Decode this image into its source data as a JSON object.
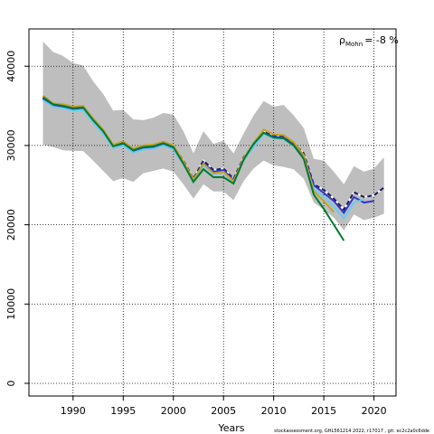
{
  "chart_data": {
    "type": "line",
    "x_label": "Years",
    "annotation": {
      "symbol": "ρ",
      "subscript": "Mohn",
      "text": "= -8 %"
    },
    "footer": "stockassessment.org, GHL561214 2022, r17017 , git: ec2c2a0c6dde",
    "x": [
      1987,
      1988,
      1989,
      1990,
      1991,
      1992,
      1993,
      1994,
      1995,
      1996,
      1997,
      1998,
      1999,
      2000,
      2001,
      2002,
      2003,
      2004,
      2005,
      2006,
      2007,
      2008,
      2009,
      2010,
      2011,
      2012,
      2013,
      2014,
      2015,
      2016,
      2017,
      2018,
      2019,
      2020,
      2021
    ],
    "xlim": [
      1985.6,
      2022.2
    ],
    "xticks": [
      1990,
      1995,
      2000,
      2005,
      2010,
      2015,
      2020
    ],
    "ylim": [
      -1600,
      44700
    ],
    "yticks": [
      0,
      10000,
      20000,
      30000,
      40000
    ],
    "grid": true,
    "band": {
      "color": "#bebebe",
      "upper": [
        43100,
        41800,
        41300,
        40400,
        40100,
        38100,
        36500,
        34400,
        34500,
        33300,
        33200,
        33500,
        34100,
        33900,
        31800,
        29000,
        31800,
        30200,
        30600,
        29000,
        31500,
        33800,
        35600,
        34900,
        35100,
        33800,
        32200,
        28300,
        28100,
        26700,
        25100,
        27400,
        26700,
        27100,
        28500
      ],
      "lower": [
        30100,
        29800,
        29400,
        29300,
        29300,
        28100,
        26800,
        25500,
        25900,
        25400,
        26500,
        26800,
        27100,
        26700,
        25100,
        23300,
        25100,
        24200,
        24200,
        23100,
        25500,
        27100,
        28100,
        27500,
        27300,
        27000,
        25800,
        22800,
        21900,
        20900,
        19300,
        21300,
        20600,
        20900,
        21400
      ]
    },
    "series": [
      {
        "color": "#1a1a5e",
        "dashed": true,
        "values": [
          36000,
          35100,
          35000,
          34700,
          34800,
          33200,
          31800,
          30000,
          30300,
          29400,
          29800,
          29900,
          30300,
          29900,
          28100,
          25800,
          28100,
          26900,
          27100,
          25800,
          28500,
          30100,
          31700,
          31200,
          31100,
          30300,
          29000,
          25100,
          24400,
          23300,
          21900,
          24100,
          23500,
          23700,
          24700
        ]
      },
      {
        "color": "#3333cc",
        "dashed": false,
        "values": [
          35900,
          35000,
          34900,
          34600,
          34700,
          33100,
          31700,
          29900,
          30200,
          29300,
          29700,
          29800,
          30200,
          29700,
          27800,
          25600,
          27800,
          26700,
          26900,
          25600,
          28300,
          30000,
          31600,
          31100,
          31000,
          30100,
          28700,
          25000,
          24000,
          23000,
          21500,
          23500,
          22800,
          23000,
          null
        ]
      },
      {
        "color": "#66ccee",
        "dashed": false,
        "values": [
          35700,
          34900,
          34700,
          34400,
          34500,
          32900,
          31500,
          29700,
          30000,
          29100,
          29500,
          29600,
          30000,
          29500,
          27600,
          25400,
          27500,
          26400,
          26600,
          25400,
          28100,
          29800,
          31400,
          30900,
          30800,
          29900,
          28400,
          24500,
          23500,
          22300,
          20800,
          22800,
          23200,
          null,
          null
        ]
      },
      {
        "color": "#c8a020",
        "dashed": false,
        "values": [
          36300,
          35300,
          35200,
          34900,
          35000,
          33400,
          32000,
          30100,
          30500,
          29600,
          30000,
          30100,
          30500,
          30000,
          28000,
          25700,
          27700,
          26500,
          26700,
          25500,
          28400,
          30300,
          32000,
          31400,
          31300,
          30400,
          28800,
          24200,
          23000,
          21600,
          null,
          null,
          null,
          null,
          null
        ]
      },
      {
        "color": "#007a33",
        "dashed": false,
        "values": [
          36100,
          35200,
          35000,
          34700,
          34800,
          33200,
          31800,
          29900,
          30300,
          29400,
          29800,
          29900,
          30300,
          29800,
          27700,
          25400,
          27000,
          26000,
          26000,
          25200,
          28200,
          30200,
          31600,
          31000,
          30900,
          30000,
          28300,
          23800,
          22000,
          20000,
          18000,
          null,
          null,
          null,
          null
        ]
      }
    ]
  }
}
